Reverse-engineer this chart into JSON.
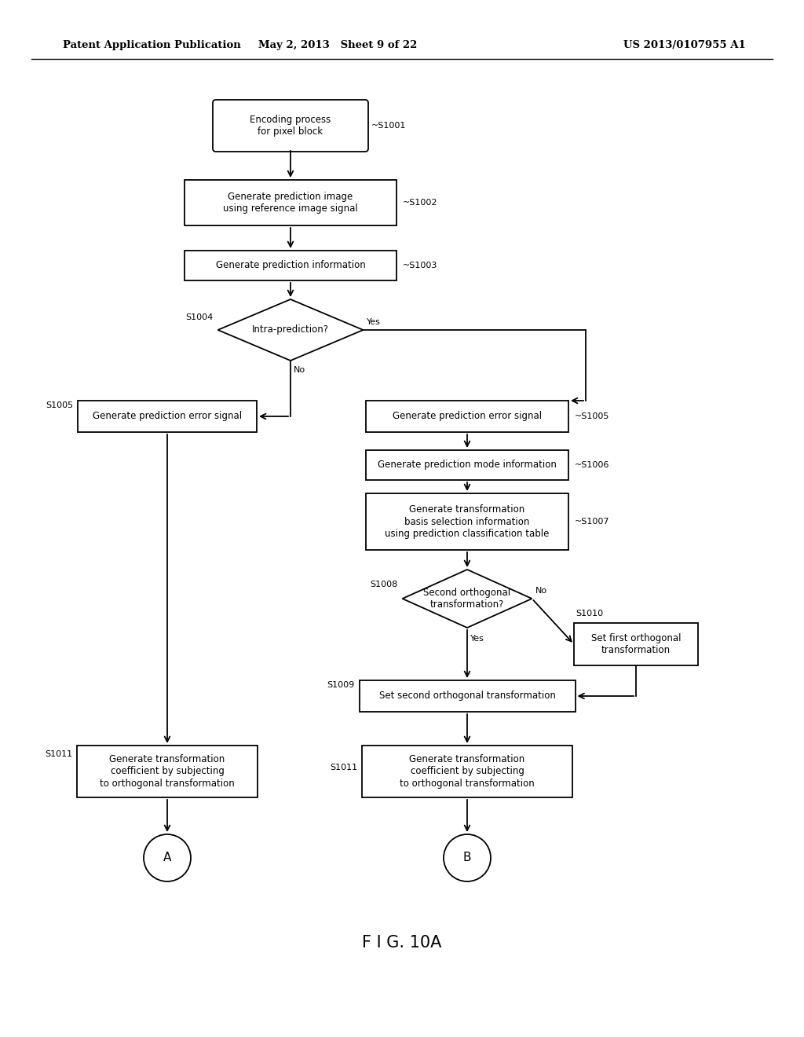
{
  "bg_color": "#ffffff",
  "text_color": "#000000",
  "header_left": "Patent Application Publication",
  "header_center": "May 2, 2013   Sheet 9 of 22",
  "header_right": "US 2013/0107955 A1",
  "figure_label": "F I G. 10A"
}
